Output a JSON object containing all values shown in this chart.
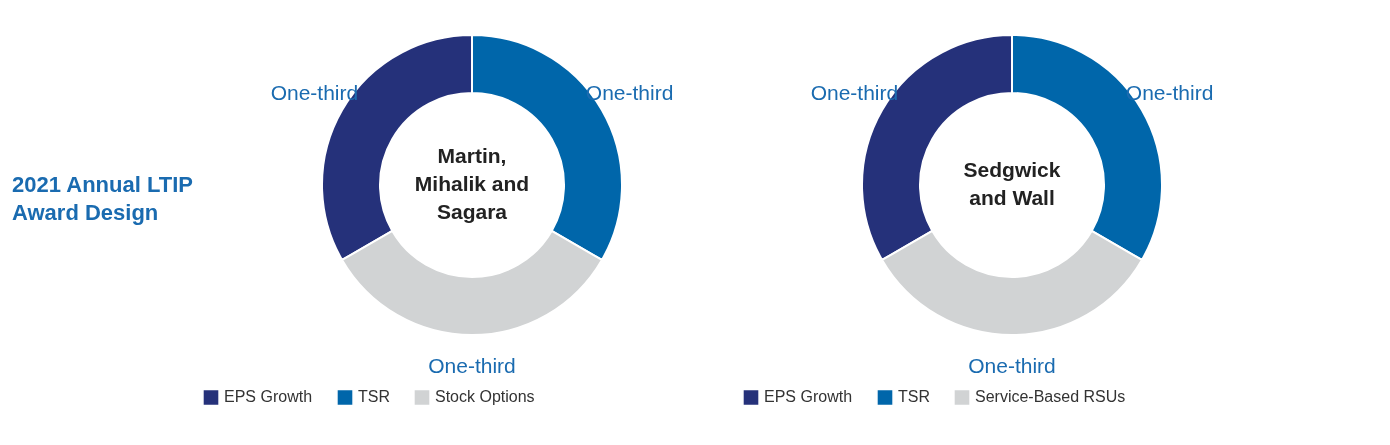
{
  "chart_data": [
    {
      "type": "other",
      "title": "2021 Annual LTIP Award Design"
    },
    {
      "type": "donut",
      "title": "Martin, Mihalik and Sagara",
      "categories": [
        "EPS Growth",
        "TSR",
        "Stock Options"
      ],
      "values": [
        33.33,
        33.33,
        33.34
      ],
      "colors": [
        "#25317a",
        "#0066aa",
        "#d1d3d4"
      ],
      "value_labels": [
        "One-third",
        "One-third",
        "One-third"
      ],
      "legend": "bottom"
    },
    {
      "type": "donut",
      "title": "Sedgwick and Wall",
      "categories": [
        "EPS Growth",
        "TSR",
        "Service-Based RSUs"
      ],
      "values": [
        33.33,
        33.33,
        33.34
      ],
      "colors": [
        "#25317a",
        "#0066aa",
        "#d1d3d4"
      ],
      "value_labels": [
        "One-third",
        "One-third",
        "One-third"
      ],
      "legend": "bottom"
    }
  ]
}
